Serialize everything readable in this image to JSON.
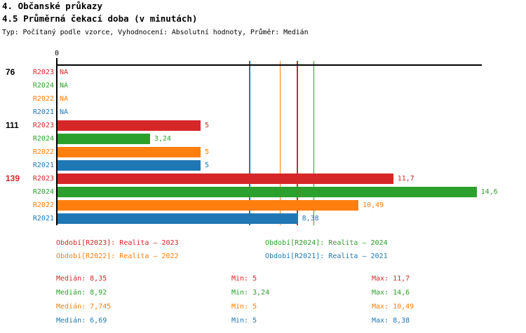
{
  "header": {
    "title_line1": "4. Občanské průkazy",
    "title_line2": "4.5 Průměrná čekací doba (v minutách)",
    "subtitle": "Typ: Počítaný podle vzorce, Vyhodnocení: Absolutní hodnoty, Průměr: Medián"
  },
  "chart_data": {
    "type": "bar",
    "orientation": "horizontal",
    "title": "4.5 Průměrná čekací doba (v minutách)",
    "value_unit": "minuty",
    "xlim": [
      0,
      14.8
    ],
    "axis_zero_label": "0",
    "grid": false,
    "series": [
      {
        "id": "R2023",
        "name": "Realita – 2023",
        "color": "#d62728"
      },
      {
        "id": "R2024",
        "name": "Realita – 2024",
        "color": "#2ca02c"
      },
      {
        "id": "R2022",
        "name": "Realita – 2022",
        "color": "#ff7f0e"
      },
      {
        "id": "R2021",
        "name": "Realita – 2021",
        "color": "#1f77b4"
      }
    ],
    "groups": [
      {
        "label": "76",
        "label_color": "#000000",
        "values": [
          null,
          null,
          null,
          null
        ],
        "value_labels": [
          "NA",
          "NA",
          "NA",
          "NA"
        ]
      },
      {
        "label": "111",
        "label_color": "#000000",
        "values": [
          5,
          3.24,
          5,
          5
        ],
        "value_labels": [
          "5",
          "3,24",
          "5",
          "5"
        ]
      },
      {
        "label": "139",
        "label_color": "#d62728",
        "values": [
          11.7,
          14.6,
          10.49,
          8.38
        ],
        "value_labels": [
          "11,7",
          "14,6",
          "10,49",
          "8,38"
        ]
      }
    ],
    "median_lines": [
      {
        "series": "R2021",
        "value": 6.69,
        "color": "#1f77b4"
      },
      {
        "series": "R2022",
        "value": 7.745,
        "color": "#ff7f0e"
      },
      {
        "series": "R2023",
        "value": 8.35,
        "color": "#d62728"
      },
      {
        "series": "R2024",
        "value": 8.92,
        "color": "#2ca02c"
      }
    ]
  },
  "legend": {
    "columns": [
      [
        {
          "text": "Období[R2023]: Realita – 2023",
          "color": "#d62728"
        },
        {
          "text": "Období[R2022]: Realita – 2022",
          "color": "#ff7f0e"
        }
      ],
      [
        {
          "text": "Období[R2024]: Realita – 2024",
          "color": "#2ca02c"
        },
        {
          "text": "Období[R2021]: Realita – 2021",
          "color": "#1f77b4"
        }
      ]
    ]
  },
  "stats": {
    "rows": [
      {
        "color": "#d62728",
        "median": "Medián: 8,35",
        "min": "Min: 5",
        "max": "Max: 11,7"
      },
      {
        "color": "#2ca02c",
        "median": "Medián: 8,92",
        "min": "Min: 3,24",
        "max": "Max: 14,6"
      },
      {
        "color": "#ff7f0e",
        "median": "Medián: 7,745",
        "min": "Min: 5",
        "max": "Max: 10,49"
      },
      {
        "color": "#1f77b4",
        "median": "Medián: 6,69",
        "min": "Min: 5",
        "max": "Max: 8,38"
      }
    ]
  }
}
